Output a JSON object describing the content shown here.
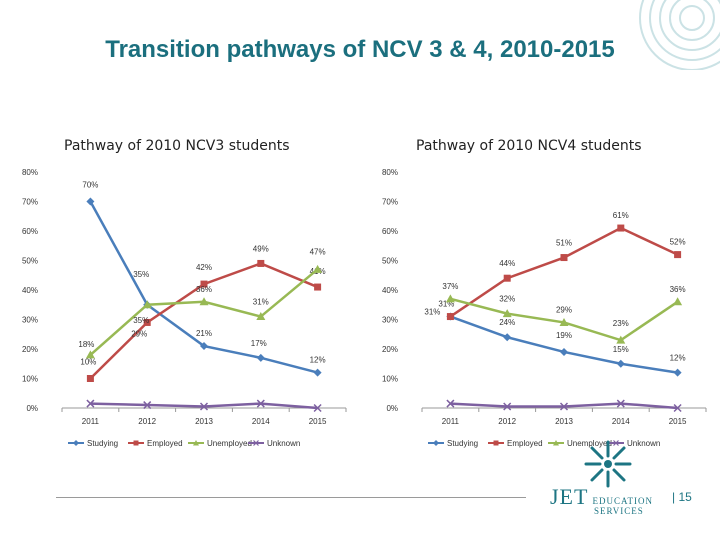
{
  "slide": {
    "title": "Transition pathways of NCV 3 & 4, 2010-2015",
    "page_number": "15"
  },
  "logo": {
    "line1": "JET",
    "line2": "EDUCATION",
    "line3": "SERVICES"
  },
  "colors": {
    "Studying": "#4a7ebb",
    "Employed": "#be4b48",
    "Unemployed": "#98b954",
    "Unknown": "#7d60a0",
    "title": "#1b6f7e"
  },
  "chart_data": [
    {
      "type": "line",
      "title": "Pathway of 2010 NCV3 students",
      "categories": [
        "2011",
        "2012",
        "2013",
        "2014",
        "2015"
      ],
      "ylim": [
        0,
        80
      ],
      "yticks": [
        "0%",
        "10%",
        "20%",
        "30%",
        "40%",
        "50%",
        "60%",
        "70%",
        "80%"
      ],
      "legend_position": "bottom",
      "series": [
        {
          "name": "Studying",
          "values": [
            70,
            35,
            21,
            17,
            12
          ],
          "labels": [
            "70%",
            "35%",
            "21%",
            "17%",
            "12%"
          ]
        },
        {
          "name": "Employed",
          "values": [
            10,
            29,
            42,
            49,
            41
          ],
          "labels": [
            "10%",
            "29%",
            "42%",
            "49%",
            "41%"
          ]
        },
        {
          "name": "Unemployed",
          "values": [
            18,
            35,
            36,
            31,
            47
          ],
          "labels": [
            "18%",
            "35%",
            "36%",
            "31%",
            "47%"
          ]
        },
        {
          "name": "Unknown",
          "values": [
            1.5,
            1,
            0.5,
            1.5,
            0
          ],
          "labels": []
        }
      ]
    },
    {
      "type": "line",
      "title": "Pathway of 2010 NCV4 students",
      "categories": [
        "2011",
        "2012",
        "2013",
        "2014",
        "2015"
      ],
      "ylim": [
        0,
        80
      ],
      "yticks": [
        "0%",
        "10%",
        "20%",
        "30%",
        "40%",
        "50%",
        "60%",
        "70%",
        "80%"
      ],
      "legend_position": "bottom",
      "series": [
        {
          "name": "Studying",
          "values": [
            31,
            24,
            19,
            15,
            12
          ],
          "labels": [
            "31%",
            "24%",
            "19%",
            "15%",
            "12%"
          ]
        },
        {
          "name": "Employed",
          "values": [
            31,
            44,
            51,
            61,
            52
          ],
          "labels": [
            "31%",
            "44%",
            "51%",
            "61%",
            "52%"
          ]
        },
        {
          "name": "Unemployed",
          "values": [
            37,
            32,
            29,
            23,
            36
          ],
          "labels": [
            "37%",
            "32%",
            "29%",
            "23%",
            "36%"
          ]
        },
        {
          "name": "Unknown",
          "values": [
            1.5,
            0.5,
            0.5,
            1.5,
            0
          ],
          "labels": []
        }
      ]
    }
  ]
}
